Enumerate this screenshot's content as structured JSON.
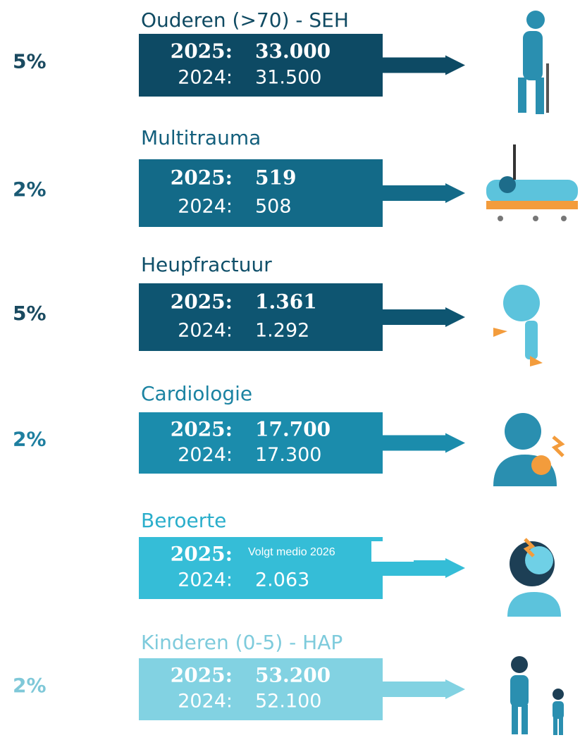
{
  "items": [
    {
      "title": "Ouderen (>70) - SEH",
      "percent": "5%",
      "rows": [
        {
          "year": "2025:",
          "value": "33.000"
        },
        {
          "year": "2024:",
          "value": "31.500"
        }
      ]
    },
    {
      "title": "Multitrauma",
      "percent": "2%",
      "rows": [
        {
          "year": "2025:",
          "value": "519"
        },
        {
          "year": "2024:",
          "value": "508"
        }
      ]
    },
    {
      "title": "Heupfractuur",
      "percent": "5%",
      "rows": [
        {
          "year": "2025:",
          "value": "1.361"
        },
        {
          "year": "2024:",
          "value": "1.292"
        }
      ]
    },
    {
      "title": "Cardiologie",
      "percent": "2%",
      "rows": [
        {
          "year": "2025:",
          "value": "17.700"
        },
        {
          "year": "2024:",
          "value": "17.300"
        }
      ]
    },
    {
      "title": "Beroerte",
      "note": "Volgt medio 2026",
      "rows": [
        {
          "year": "2025:"
        },
        {
          "year": "2024:",
          "value": "2.063"
        }
      ]
    },
    {
      "title": "Kinderen (0-5) - HAP",
      "percent": "2%",
      "rows": [
        {
          "year": "2025:",
          "value": "53.200"
        },
        {
          "year": "2024:",
          "value": "52.100"
        }
      ]
    }
  ]
}
